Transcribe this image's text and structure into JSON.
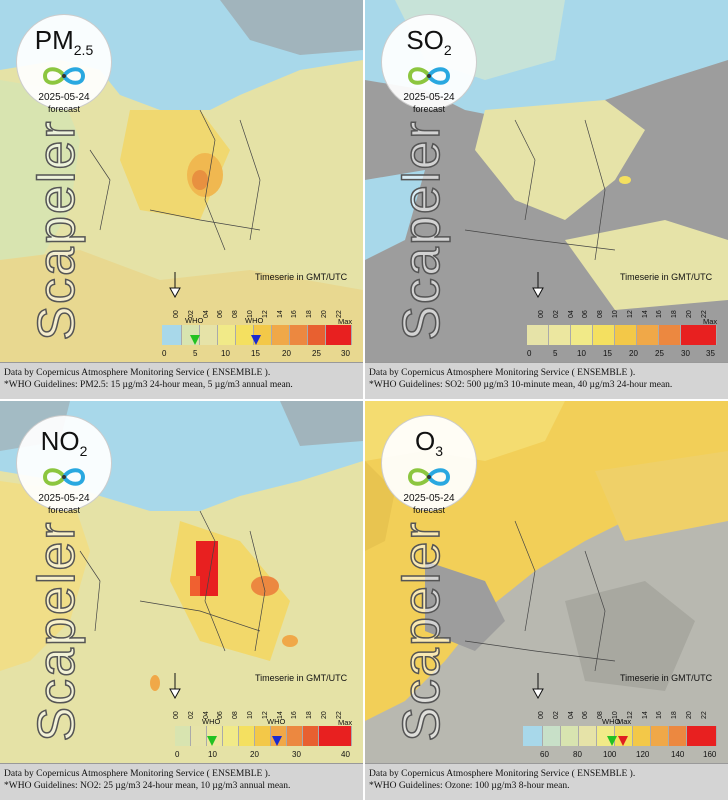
{
  "panels": [
    {
      "pollutant_main": "PM",
      "pollutant_sub": "2.5",
      "date": "2025-05-24",
      "forecast_label": "forecast",
      "watermark": "Scapeler",
      "timeserie_label": "Timeserie in GMT/UTC",
      "hours": [
        "00",
        "02",
        "04",
        "06",
        "08",
        "10",
        "12",
        "14",
        "16",
        "18",
        "20",
        "22"
      ],
      "scale_labels": [
        "0",
        "5",
        "10",
        "15",
        "20",
        "25",
        "30"
      ],
      "who_labels": [
        "WHO",
        "WHO"
      ],
      "max_label": "Max",
      "footer_line1": "Data by Copernicus Atmosphere Monitoring Service ( ENSEMBLE ).",
      "footer_line2": "*WHO Guidelines: PM2.5: 15 µg/m3 24-hour mean, 5 µg/m3 annual mean."
    },
    {
      "pollutant_main": "SO",
      "pollutant_sub": "2",
      "date": "2025-05-24",
      "forecast_label": "forecast",
      "watermark": "Scapeler",
      "timeserie_label": "Timeserie in GMT/UTC",
      "hours": [
        "00",
        "02",
        "04",
        "06",
        "08",
        "10",
        "12",
        "14",
        "16",
        "18",
        "20",
        "22"
      ],
      "scale_labels": [
        "0",
        "5",
        "10",
        "15",
        "20",
        "25",
        "30",
        "35"
      ],
      "who_labels": [],
      "max_label": "Max",
      "footer_line1": "Data by Copernicus Atmosphere Monitoring Service ( ENSEMBLE ).",
      "footer_line2": "*WHO Guidelines: SO2: 500 µg/m3 10-minute mean, 40 µg/m3 24-hour mean."
    },
    {
      "pollutant_main": "NO",
      "pollutant_sub": "2",
      "date": "2025-05-24",
      "forecast_label": "forecast",
      "watermark": "Scapeler",
      "timeserie_label": "Timeserie in GMT/UTC",
      "hours": [
        "00",
        "02",
        "04",
        "06",
        "08",
        "10",
        "12",
        "14",
        "16",
        "18",
        "20",
        "22"
      ],
      "scale_labels": [
        "0",
        "10",
        "20",
        "30",
        "40"
      ],
      "who_labels": [
        "WHO",
        "WHO"
      ],
      "max_label": "Max",
      "footer_line1": "Data by Copernicus Atmosphere Monitoring Service ( ENSEMBLE ).",
      "footer_line2": "*WHO Guidelines: NO2: 25 µg/m3 24-hour mean, 10 µg/m3 annual mean."
    },
    {
      "pollutant_main": "O",
      "pollutant_sub": "3",
      "date": "2025-05-24",
      "forecast_label": "forecast",
      "watermark": "Scapeler",
      "timeserie_label": "Timeserie in GMT/UTC",
      "hours": [
        "00",
        "02",
        "04",
        "06",
        "08",
        "10",
        "12",
        "14",
        "16",
        "18",
        "20",
        "22"
      ],
      "scale_labels": [
        "60",
        "80",
        "100",
        "120",
        "140",
        "160"
      ],
      "who_labels": [
        "WHO"
      ],
      "max_label": "Max",
      "footer_line1": "Data by Copernicus Atmosphere Monitoring Service ( ENSEMBLE ).",
      "footer_line2": "*WHO Guidelines: Ozone: 100 µg/m3 8-hour mean."
    }
  ],
  "colors": {
    "sea": "#a8d8ea",
    "land_gray": "#9d9d9d",
    "pale_yellow": "#e6e3a8",
    "yellow": "#f4e27a",
    "orange": "#f0a040",
    "red": "#e82020",
    "who_green": "#22c222",
    "who_blue": "#1a2ad0",
    "who_red": "#e02020"
  }
}
